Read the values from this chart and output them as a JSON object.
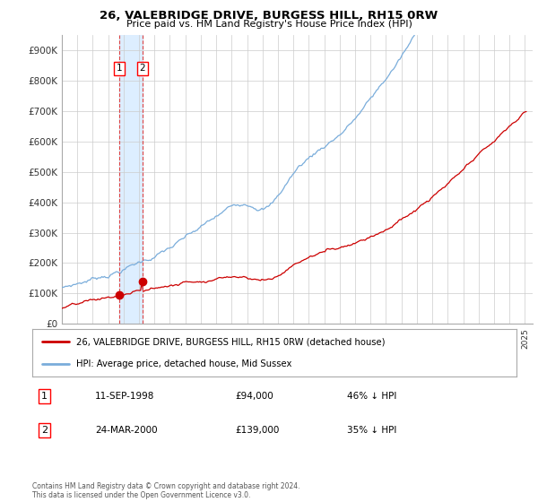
{
  "title": "26, VALEBRIDGE DRIVE, BURGESS HILL, RH15 0RW",
  "subtitle": "Price paid vs. HM Land Registry's House Price Index (HPI)",
  "ylabel_ticks": [
    "£0",
    "£100K",
    "£200K",
    "£300K",
    "£400K",
    "£500K",
    "£600K",
    "£700K",
    "£800K",
    "£900K"
  ],
  "ytick_vals": [
    0,
    100000,
    200000,
    300000,
    400000,
    500000,
    600000,
    700000,
    800000,
    900000
  ],
  "ylim": [
    0,
    950000
  ],
  "xlim_start": 1995.0,
  "xlim_end": 2025.5,
  "sale1_date": "11-SEP-1998",
  "sale1_price": 94000,
  "sale1_pct": "46%",
  "sale1_year": 1998.7,
  "sale2_date": "24-MAR-2000",
  "sale2_price": 139000,
  "sale2_pct": "35%",
  "sale2_year": 2000.22,
  "line_color_property": "#cc0000",
  "line_color_hpi": "#7aaddb",
  "vline_color": "#dd4444",
  "shade_color": "#ddeeff",
  "dot_color": "#cc0000",
  "legend_label1": "26, VALEBRIDGE DRIVE, BURGESS HILL, RH15 0RW (detached house)",
  "legend_label2": "HPI: Average price, detached house, Mid Sussex",
  "footnote": "Contains HM Land Registry data © Crown copyright and database right 2024.\nThis data is licensed under the Open Government Licence v3.0.",
  "background_color": "#ffffff",
  "grid_color": "#cccccc"
}
